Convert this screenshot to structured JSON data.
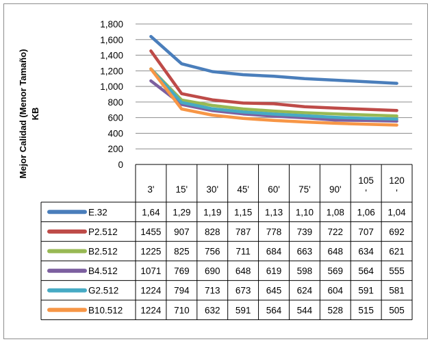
{
  "chart_data": {
    "type": "line",
    "title": "",
    "xlabel": "",
    "ylabel": "Mejor Calidad (Menor Tamaño) KB",
    "ylabel_lines": [
      "Mejor Calidad (Menor Tamaño)",
      "KB"
    ],
    "ylim": [
      0,
      1800
    ],
    "yticks": [
      0,
      200,
      400,
      600,
      800,
      1000,
      1200,
      1400,
      1600,
      1800
    ],
    "ytick_labels": [
      "0",
      "200",
      "400",
      "600",
      "800",
      "1,000",
      "1,200",
      "1,400",
      "1,600",
      "1,800"
    ],
    "grid": true,
    "legend": "data-table",
    "categories": [
      "3'",
      "15'",
      "30'",
      "45'",
      "60'",
      "75'",
      "90'",
      "105'",
      "120'"
    ],
    "category_display": [
      [
        "3'"
      ],
      [
        "15'"
      ],
      [
        "30'"
      ],
      [
        "45'"
      ],
      [
        "60'"
      ],
      [
        "75'"
      ],
      [
        "90'"
      ],
      [
        "105",
        "'"
      ],
      [
        "120",
        "'"
      ]
    ],
    "series": [
      {
        "name": "E.32",
        "color": "#4a7ebb",
        "values": [
          1640,
          1290,
          1190,
          1150,
          1130,
          1100,
          1080,
          1060,
          1040
        ],
        "table_labels": [
          "1,64",
          "1,29",
          "1,19",
          "1,15",
          "1,13",
          "1,10",
          "1,08",
          "1,06",
          "1,04"
        ]
      },
      {
        "name": "P2.512",
        "color": "#be4b48",
        "values": [
          1455,
          907,
          828,
          787,
          778,
          739,
          722,
          707,
          692
        ],
        "table_labels": [
          "1455",
          "907",
          "828",
          "787",
          "778",
          "739",
          "722",
          "707",
          "692"
        ]
      },
      {
        "name": "B2.512",
        "color": "#98b954",
        "values": [
          1225,
          825,
          756,
          711,
          684,
          663,
          648,
          634,
          621
        ],
        "table_labels": [
          "1225",
          "825",
          "756",
          "711",
          "684",
          "663",
          "648",
          "634",
          "621"
        ]
      },
      {
        "name": "B4.512",
        "color": "#7d60a0",
        "values": [
          1071,
          769,
          690,
          648,
          619,
          598,
          569,
          564,
          555
        ],
        "table_labels": [
          "1071",
          "769",
          "690",
          "648",
          "619",
          "598",
          "569",
          "564",
          "555"
        ]
      },
      {
        "name": "G2.512",
        "color": "#46aac4",
        "values": [
          1224,
          794,
          713,
          673,
          645,
          624,
          604,
          591,
          581
        ],
        "table_labels": [
          "1224",
          "794",
          "713",
          "673",
          "645",
          "624",
          "604",
          "591",
          "581"
        ]
      },
      {
        "name": "B10.512",
        "color": "#f79646",
        "values": [
          1224,
          710,
          632,
          591,
          564,
          544,
          528,
          515,
          505
        ],
        "table_labels": [
          "1224",
          "710",
          "632",
          "591",
          "564",
          "544",
          "528",
          "515",
          "505"
        ]
      }
    ]
  }
}
